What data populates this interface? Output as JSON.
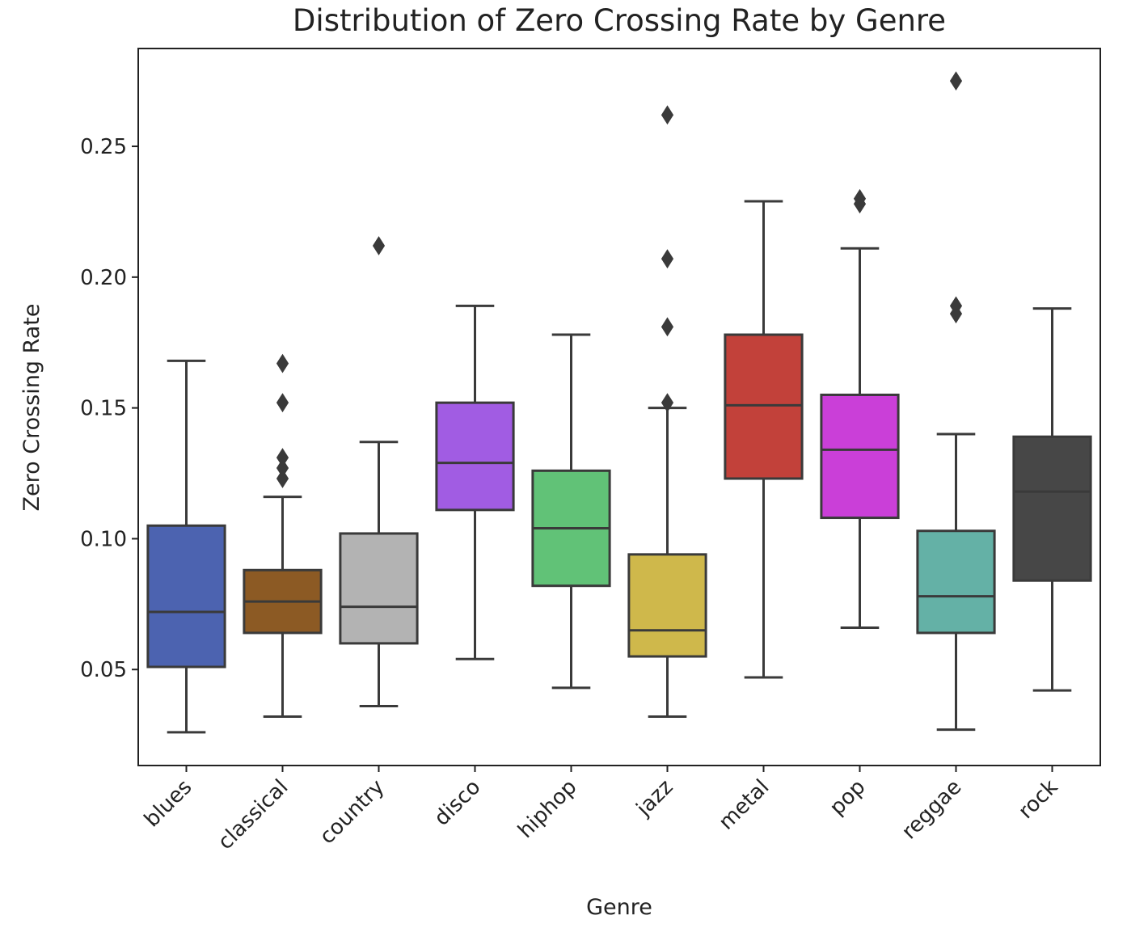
{
  "chart_data": {
    "type": "box",
    "title": "Distribution of Zero Crossing Rate by Genre",
    "xlabel": "Genre",
    "ylabel": "Zero Crossing Rate",
    "ylim": [
      0.0133,
      0.2874
    ],
    "yticks": [
      0.05,
      0.1,
      0.15,
      0.2,
      0.25
    ],
    "ytick_labels": [
      "0.05",
      "0.10",
      "0.15",
      "0.20",
      "0.25"
    ],
    "grid": false,
    "legend": "none",
    "categories": [
      "blues",
      "classical",
      "country",
      "disco",
      "hiphop",
      "jazz",
      "metal",
      "pop",
      "reggae",
      "rock"
    ],
    "boxes": [
      {
        "category": "blues",
        "whisker_low": 0.026,
        "q1": 0.051,
        "median": 0.072,
        "q3": 0.105,
        "whisker_high": 0.168,
        "outliers": [],
        "color": "#4c63b0"
      },
      {
        "category": "classical",
        "whisker_low": 0.032,
        "q1": 0.064,
        "median": 0.076,
        "q3": 0.088,
        "whisker_high": 0.116,
        "outliers": [
          0.167,
          0.152,
          0.131,
          0.127,
          0.123
        ],
        "color": "#8c5a24"
      },
      {
        "category": "country",
        "whisker_low": 0.036,
        "q1": 0.06,
        "median": 0.074,
        "q3": 0.102,
        "whisker_high": 0.137,
        "outliers": [
          0.212
        ],
        "color": "#b3b3b3"
      },
      {
        "category": "disco",
        "whisker_low": 0.054,
        "q1": 0.111,
        "median": 0.129,
        "q3": 0.152,
        "whisker_high": 0.189,
        "outliers": [],
        "color": "#a15ce3"
      },
      {
        "category": "hiphop",
        "whisker_low": 0.043,
        "q1": 0.082,
        "median": 0.104,
        "q3": 0.126,
        "whisker_high": 0.178,
        "outliers": [],
        "color": "#61c277"
      },
      {
        "category": "jazz",
        "whisker_low": 0.032,
        "q1": 0.055,
        "median": 0.065,
        "q3": 0.094,
        "whisker_high": 0.15,
        "outliers": [
          0.262,
          0.207,
          0.181,
          0.152
        ],
        "color": "#cfb84b"
      },
      {
        "category": "metal",
        "whisker_low": 0.047,
        "q1": 0.123,
        "median": 0.151,
        "q3": 0.178,
        "whisker_high": 0.229,
        "outliers": [],
        "color": "#c2413a"
      },
      {
        "category": "pop",
        "whisker_low": 0.066,
        "q1": 0.108,
        "median": 0.134,
        "q3": 0.155,
        "whisker_high": 0.211,
        "outliers": [
          0.23,
          0.228
        ],
        "color": "#ca3fd8"
      },
      {
        "category": "reggae",
        "whisker_low": 0.027,
        "q1": 0.064,
        "median": 0.078,
        "q3": 0.103,
        "whisker_high": 0.14,
        "outliers": [
          0.275,
          0.189,
          0.186
        ],
        "color": "#64b1a6"
      },
      {
        "category": "rock",
        "whisker_low": 0.042,
        "q1": 0.084,
        "median": 0.118,
        "q3": 0.139,
        "whisker_high": 0.188,
        "outliers": [],
        "color": "#474747"
      }
    ]
  }
}
